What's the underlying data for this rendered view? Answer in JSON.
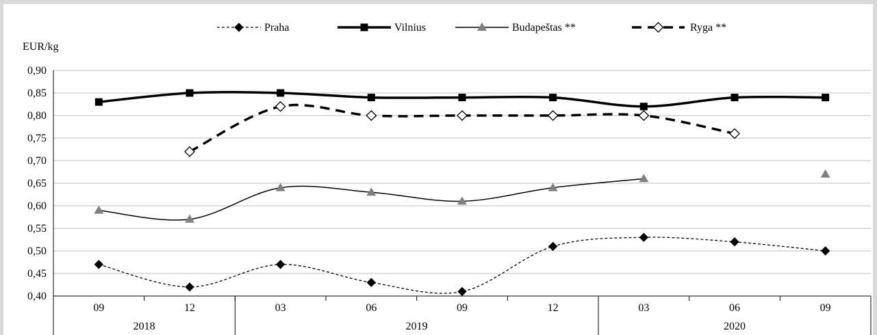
{
  "chart_data": {
    "type": "line",
    "ylabel": "EUR/kg",
    "ylim": [
      0.4,
      0.9
    ],
    "yticks": [
      "0,40",
      "0,45",
      "0,50",
      "0,55",
      "0,60",
      "0,65",
      "0,70",
      "0,75",
      "0,80",
      "0,85",
      "0,90"
    ],
    "categories": [
      "09",
      "12",
      "03",
      "06",
      "09",
      "12",
      "03",
      "06",
      "09"
    ],
    "year_groups": [
      {
        "label": "2018",
        "from": 0,
        "to": 1
      },
      {
        "label": "2019",
        "from": 2,
        "to": 5
      },
      {
        "label": "2020",
        "from": 6,
        "to": 8
      }
    ],
    "grid": "horizontal",
    "legend_position": "top",
    "series": [
      {
        "name": "Praha",
        "style": "dotted",
        "marker": "filled-diamond",
        "color": "#000000",
        "values": [
          0.47,
          0.42,
          0.47,
          0.43,
          0.41,
          0.51,
          0.53,
          0.52,
          0.5
        ]
      },
      {
        "name": "Vilnius",
        "style": "thick-solid",
        "marker": "filled-square",
        "color": "#000000",
        "values": [
          0.83,
          0.85,
          0.85,
          0.84,
          0.84,
          0.84,
          0.82,
          0.84,
          0.84
        ]
      },
      {
        "name": "Budapeštas **",
        "style": "thin-solid",
        "marker": "gray-triangle",
        "color": "#808080",
        "values": [
          0.59,
          0.57,
          0.64,
          0.63,
          0.61,
          0.64,
          0.66,
          null,
          0.67
        ]
      },
      {
        "name": "Ryga **",
        "style": "thick-dashed",
        "marker": "open-diamond",
        "color": "#000000",
        "values": [
          null,
          0.72,
          0.82,
          0.8,
          0.8,
          0.8,
          0.8,
          0.76,
          null
        ]
      }
    ]
  }
}
